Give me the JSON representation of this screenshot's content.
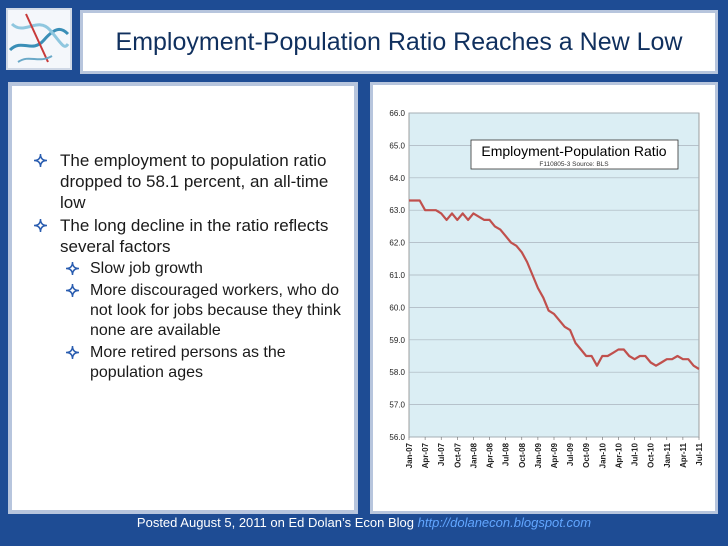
{
  "slide": {
    "title": "Employment-Population Ratio Reaches a New Low",
    "bullets": [
      {
        "text": "The employment to population ratio dropped to 58.1 percent, an all-time low",
        "level": 1
      },
      {
        "text": "The long decline in the ratio reflects several factors",
        "level": 1
      },
      {
        "text": "Slow job growth",
        "level": 2
      },
      {
        "text": "More discouraged workers, who do not look for jobs because they think none are available",
        "level": 2
      },
      {
        "text": "More retired persons as the population ages",
        "level": 2
      }
    ],
    "footer_text": "Posted August 5, 2011 on Ed Dolan’s Econ Blog",
    "footer_url": "http://dolanecon.blogspot.com"
  },
  "colors": {
    "background": "#1e4c94",
    "line": "#c0504d",
    "plot_area": "#dbeef4",
    "diamond": "#2a5db0"
  },
  "chart_data": {
    "type": "line",
    "title": "Employment-Population Ratio",
    "subtitle": "F110805-3 Source: BLS",
    "ylim": [
      56.0,
      66.0
    ],
    "y_ticks": [
      "56.0",
      "57.0",
      "58.0",
      "59.0",
      "60.0",
      "61.0",
      "62.0",
      "63.0",
      "64.0",
      "65.0",
      "66.0"
    ],
    "x_tick_labels": [
      "Jan-07",
      "Apr-07",
      "Jul-07",
      "Oct-07",
      "Jan-08",
      "Apr-08",
      "Jul-08",
      "Oct-08",
      "Jan-09",
      "Apr-09",
      "Jul-09",
      "Oct-09",
      "Jan-10",
      "Apr-10",
      "Jul-10",
      "Oct-10",
      "Jan-11",
      "Apr-11",
      "Jul-11"
    ],
    "x_start": "Jan-07",
    "x_end": "Jul-11",
    "grid": true,
    "legend": "none",
    "series": [
      {
        "values": [
          63.3,
          63.3,
          63.3,
          63.0,
          63.0,
          63.0,
          62.9,
          62.7,
          62.9,
          62.7,
          62.9,
          62.7,
          62.9,
          62.8,
          62.7,
          62.7,
          62.5,
          62.4,
          62.2,
          62.0,
          61.9,
          61.7,
          61.4,
          61.0,
          60.6,
          60.3,
          59.9,
          59.8,
          59.6,
          59.4,
          59.3,
          58.9,
          58.7,
          58.5,
          58.5,
          58.2,
          58.5,
          58.5,
          58.6,
          58.7,
          58.7,
          58.5,
          58.4,
          58.5,
          58.5,
          58.3,
          58.2,
          58.3,
          58.4,
          58.4,
          58.5,
          58.4,
          58.4,
          58.2,
          58.1
        ]
      }
    ]
  }
}
